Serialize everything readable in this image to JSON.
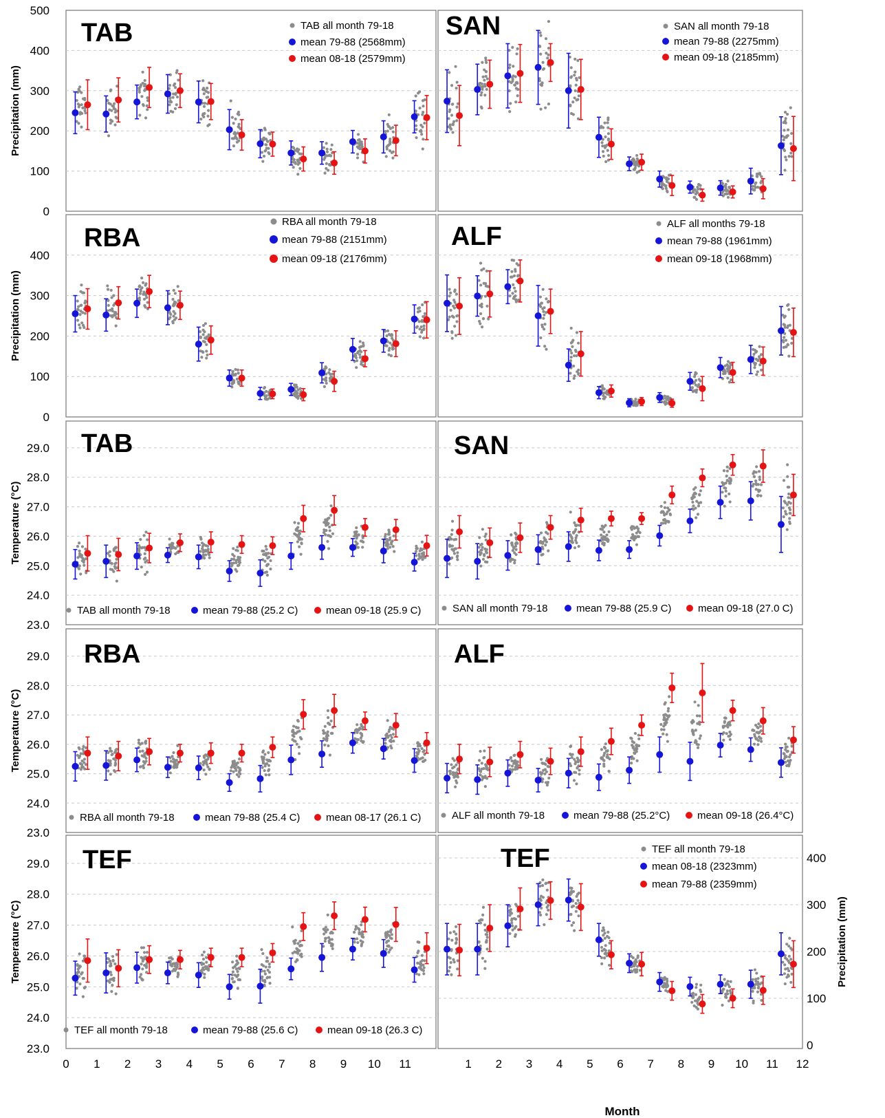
{
  "colors": {
    "all": "#8c8c8c",
    "blue": "#1515d8",
    "red": "#e51414",
    "frame": "#7f7f7f",
    "grid": "#c8c8c8"
  },
  "figure": {
    "x_label": "Month",
    "x_ticks": [
      "0",
      "1",
      "2",
      "3",
      "4",
      "5",
      "6",
      "7",
      "8",
      "9",
      "10",
      "11",
      "12"
    ]
  },
  "chart_data": [
    {
      "type": "scatter",
      "station": "TAB",
      "ylabel": "Precipitation (mm)",
      "ylim": [
        0,
        500
      ],
      "yticks": [
        "0",
        "100",
        "200",
        "300",
        "400",
        "500"
      ],
      "grid": true,
      "legend": [
        "TAB all month 79-18",
        "mean 79-88 (2568mm)",
        "mean 08-18 (2579mm)"
      ],
      "series": [
        {
          "name": "mean 79-88 (2568mm)",
          "color": "blue",
          "values": [
            245,
            242,
            272,
            292,
            272,
            203,
            168,
            145,
            145,
            173,
            185,
            235
          ],
          "err": [
            52,
            45,
            42,
            48,
            52,
            50,
            35,
            30,
            28,
            28,
            40,
            40
          ]
        },
        {
          "name": "mean 08-18 (2579mm)",
          "color": "red",
          "values": [
            265,
            277,
            308,
            300,
            273,
            190,
            167,
            130,
            120,
            150,
            176,
            233
          ],
          "err": [
            62,
            55,
            50,
            42,
            45,
            38,
            30,
            30,
            28,
            30,
            38,
            55
          ]
        }
      ]
    },
    {
      "type": "scatter",
      "station": "SAN",
      "ylabel": "",
      "ylim": [
        0,
        500
      ],
      "yticks": [],
      "grid": true,
      "legend": [
        "SAN all month 79-18",
        "mean 79-88 (2275mm)",
        "mean 09-18 (2185mm)"
      ],
      "series": [
        {
          "name": "mean 79-88 (2275mm)",
          "color": "blue",
          "values": [
            274,
            303,
            337,
            358,
            300,
            184,
            118,
            80,
            60,
            58,
            75,
            163
          ],
          "err": [
            78,
            63,
            80,
            92,
            93,
            50,
            17,
            20,
            15,
            18,
            32,
            72
          ]
        },
        {
          "name": "mean 09-18 (2185mm)",
          "color": "red",
          "values": [
            238,
            316,
            343,
            370,
            303,
            167,
            122,
            64,
            40,
            48,
            56,
            156
          ],
          "err": [
            75,
            60,
            72,
            47,
            75,
            38,
            20,
            25,
            15,
            15,
            25,
            80
          ]
        }
      ]
    },
    {
      "type": "scatter",
      "station": "RBA",
      "ylabel": "Precipitation (mm)",
      "ylim": [
        0,
        500
      ],
      "yticks": [
        "0",
        "100",
        "200",
        "300",
        "400"
      ],
      "grid": true,
      "legend": [
        "RBA all month 79-18",
        "mean 79-88 (2151mm)",
        "mean 09-18 (2176mm)"
      ],
      "series": [
        {
          "name": "mean 79-88 (2151mm)",
          "color": "blue",
          "values": [
            255,
            252,
            281,
            270,
            180,
            96,
            58,
            68,
            109,
            167,
            188,
            242
          ],
          "err": [
            45,
            40,
            35,
            42,
            42,
            20,
            15,
            15,
            25,
            27,
            28,
            35
          ]
        },
        {
          "name": "mean 09-18 (2176mm)",
          "color": "red",
          "values": [
            267,
            282,
            310,
            276,
            190,
            96,
            57,
            55,
            88,
            144,
            181,
            240
          ],
          "err": [
            50,
            40,
            40,
            35,
            35,
            20,
            12,
            15,
            25,
            20,
            32,
            45
          ]
        }
      ]
    },
    {
      "type": "scatter",
      "station": "ALF",
      "ylabel": "",
      "ylim": [
        0,
        500
      ],
      "yticks": [],
      "grid": true,
      "legend": [
        "ALF all months 79-18",
        "mean 79-88 (1961mm)",
        "mean 09-18 (1968mm)"
      ],
      "series": [
        {
          "name": "mean 79-88 (1961mm)",
          "color": "blue",
          "values": [
            281,
            299,
            322,
            250,
            128,
            60,
            35,
            48,
            88,
            122,
            142,
            213
          ],
          "err": [
            70,
            50,
            42,
            75,
            40,
            15,
            10,
            12,
            22,
            25,
            35,
            60
          ]
        },
        {
          "name": "mean 09-18 (1968mm)",
          "color": "red",
          "values": [
            274,
            304,
            336,
            261,
            156,
            64,
            38,
            34,
            70,
            110,
            138,
            209
          ],
          "err": [
            70,
            57,
            52,
            55,
            55,
            15,
            10,
            10,
            30,
            25,
            35,
            60
          ]
        }
      ]
    },
    {
      "type": "scatter",
      "station": "TAB",
      "ylabel": "Temperature (°C)",
      "ylim": [
        23,
        30
      ],
      "yticks": [
        "23.0",
        "24.0",
        "25.0",
        "26.0",
        "27.0",
        "28.0",
        "29.0"
      ],
      "grid": true,
      "legend": [
        "TAB all month 79-18",
        "mean 79-88 (25.2 C)",
        "mean 09-18 (25.9 C)"
      ],
      "series": [
        {
          "name": "mean 79-88 (25.2 C)",
          "color": "blue",
          "values": [
            25.05,
            25.15,
            25.33,
            25.36,
            25.3,
            24.82,
            24.75,
            25.33,
            25.62,
            25.62,
            25.5,
            25.12
          ],
          "err": [
            0.5,
            0.55,
            0.45,
            0.25,
            0.4,
            0.35,
            0.45,
            0.45,
            0.4,
            0.3,
            0.4,
            0.3
          ]
        },
        {
          "name": "mean 09-18 (25.9 C)",
          "color": "red",
          "values": [
            25.42,
            25.38,
            25.6,
            25.78,
            25.8,
            25.72,
            25.68,
            26.6,
            26.88,
            26.3,
            26.22,
            25.68
          ],
          "err": [
            0.6,
            0.55,
            0.5,
            0.3,
            0.35,
            0.3,
            0.3,
            0.45,
            0.5,
            0.3,
            0.35,
            0.35
          ]
        }
      ]
    },
    {
      "type": "scatter",
      "station": "SAN",
      "ylabel": "",
      "ylim": [
        23,
        30
      ],
      "yticks": [],
      "grid": true,
      "legend": [
        "SAN all month 79-18",
        "mean 79-88 (25.9 C)",
        "mean 09-18 (27.0 C)"
      ],
      "series": [
        {
          "name": "mean 79-88 (25.9 C)",
          "color": "blue",
          "values": [
            25.25,
            25.15,
            25.35,
            25.55,
            25.65,
            25.52,
            25.55,
            26.02,
            26.52,
            27.15,
            27.2,
            26.4
          ],
          "err": [
            0.65,
            0.6,
            0.5,
            0.5,
            0.5,
            0.35,
            0.3,
            0.35,
            0.4,
            0.55,
            0.65,
            0.95
          ]
        },
        {
          "name": "mean 09-18 (27.0 C)",
          "color": "red",
          "values": [
            26.15,
            25.78,
            25.95,
            26.3,
            26.55,
            26.6,
            26.6,
            27.4,
            27.98,
            28.42,
            28.38,
            27.4
          ],
          "err": [
            0.55,
            0.5,
            0.5,
            0.4,
            0.4,
            0.25,
            0.2,
            0.3,
            0.3,
            0.35,
            0.55,
            0.7
          ]
        }
      ]
    },
    {
      "type": "scatter",
      "station": "RBA",
      "ylabel": "Temperature (°C)",
      "ylim": [
        23,
        30
      ],
      "yticks": [
        "23.0",
        "24.0",
        "25.0",
        "26.0",
        "27.0",
        "28.0",
        "29.0"
      ],
      "grid": true,
      "legend": [
        "RBA all month 79-18",
        "mean 79-88 (25.4 C)",
        "mean 08-17 (26.1 C)"
      ],
      "series": [
        {
          "name": "mean 79-88 (25.4 C)",
          "color": "blue",
          "values": [
            25.25,
            25.28,
            25.47,
            25.22,
            25.2,
            24.7,
            24.83,
            25.47,
            25.67,
            26.05,
            25.85,
            25.45
          ],
          "err": [
            0.5,
            0.5,
            0.4,
            0.35,
            0.4,
            0.3,
            0.45,
            0.5,
            0.45,
            0.35,
            0.35,
            0.4
          ]
        },
        {
          "name": "mean 08-17 (26.1 C)",
          "color": "red",
          "values": [
            25.7,
            25.6,
            25.75,
            25.7,
            25.7,
            25.7,
            25.9,
            27.02,
            27.15,
            26.8,
            26.65,
            26.05
          ],
          "err": [
            0.55,
            0.5,
            0.45,
            0.3,
            0.35,
            0.3,
            0.35,
            0.5,
            0.55,
            0.3,
            0.4,
            0.35
          ]
        }
      ]
    },
    {
      "type": "scatter",
      "station": "ALF",
      "ylabel": "",
      "ylim": [
        23,
        30
      ],
      "yticks": [],
      "grid": true,
      "legend": [
        "ALF all month 79-18",
        "mean 79-88 (25.2°C)",
        "mean 09-18 (26.4°C)"
      ],
      "series": [
        {
          "name": "mean 79-88 (25.2°C)",
          "color": "blue",
          "values": [
            24.85,
            24.8,
            25.02,
            24.78,
            25.02,
            24.88,
            25.12,
            25.65,
            25.42,
            25.97,
            25.82,
            25.38
          ],
          "err": [
            0.5,
            0.5,
            0.45,
            0.4,
            0.5,
            0.45,
            0.45,
            0.6,
            0.65,
            0.4,
            0.4,
            0.5
          ]
        },
        {
          "name": "mean 09-18 (26.4°C)",
          "color": "red",
          "values": [
            25.5,
            25.4,
            25.65,
            25.42,
            25.75,
            26.1,
            26.65,
            27.92,
            27.75,
            27.15,
            26.8,
            26.15
          ],
          "err": [
            0.5,
            0.5,
            0.45,
            0.45,
            0.5,
            0.45,
            0.35,
            0.5,
            1.0,
            0.35,
            0.45,
            0.45
          ]
        }
      ]
    },
    {
      "type": "scatter",
      "station": "TEF",
      "ylabel": "Temperature (°C)",
      "ylim": [
        23,
        30
      ],
      "yticks": [
        "23.0",
        "24.0",
        "25.0",
        "26.0",
        "27.0",
        "28.0",
        "29.0"
      ],
      "grid": true,
      "legend": [
        "TEF all month 79-18",
        "mean 79-88 (25.6 C)",
        "mean 09-18 (26.3 C)"
      ],
      "series": [
        {
          "name": "mean 79-88 (25.6 C)",
          "color": "blue",
          "values": [
            25.28,
            25.45,
            25.62,
            25.45,
            25.38,
            25.0,
            25.02,
            25.58,
            25.95,
            26.22,
            26.08,
            25.55
          ],
          "err": [
            0.55,
            0.65,
            0.5,
            0.35,
            0.4,
            0.4,
            0.55,
            0.35,
            0.45,
            0.35,
            0.45,
            0.4
          ]
        },
        {
          "name": "mean 09-18 (26.3 C)",
          "color": "red",
          "values": [
            25.85,
            25.6,
            25.88,
            25.88,
            25.95,
            25.95,
            26.1,
            26.95,
            27.3,
            27.18,
            27.02,
            26.25
          ],
          "err": [
            0.7,
            0.6,
            0.45,
            0.3,
            0.3,
            0.3,
            0.3,
            0.45,
            0.45,
            0.4,
            0.55,
            0.5
          ]
        }
      ]
    },
    {
      "type": "scatter",
      "station": "TEF",
      "ylabel": "Precipitation (mm)",
      "ylim": [
        0,
        450
      ],
      "y_axis_side": "right",
      "yticks": [
        "0",
        "100",
        "200",
        "300",
        "400"
      ],
      "grid": true,
      "legend": [
        "TEF all month 79-18",
        "mean 08-18 (2323mm)",
        "mean 79-88 (2359mm)"
      ],
      "series": [
        {
          "name": "mean 79-88 (2359mm)",
          "color": "blue",
          "values": [
            205,
            205,
            255,
            300,
            310,
            225,
            175,
            135,
            125,
            130,
            130,
            195
          ],
          "err": [
            55,
            55,
            45,
            45,
            45,
            35,
            20,
            20,
            20,
            20,
            30,
            45
          ]
        },
        {
          "name": "mean 08-18 (2323mm)",
          "color": "red",
          "values": [
            203,
            250,
            291,
            309,
            295,
            193,
            173,
            116,
            88,
            100,
            117,
            173
          ],
          "err": [
            55,
            50,
            45,
            40,
            50,
            30,
            25,
            20,
            20,
            20,
            30,
            50
          ]
        }
      ]
    }
  ]
}
